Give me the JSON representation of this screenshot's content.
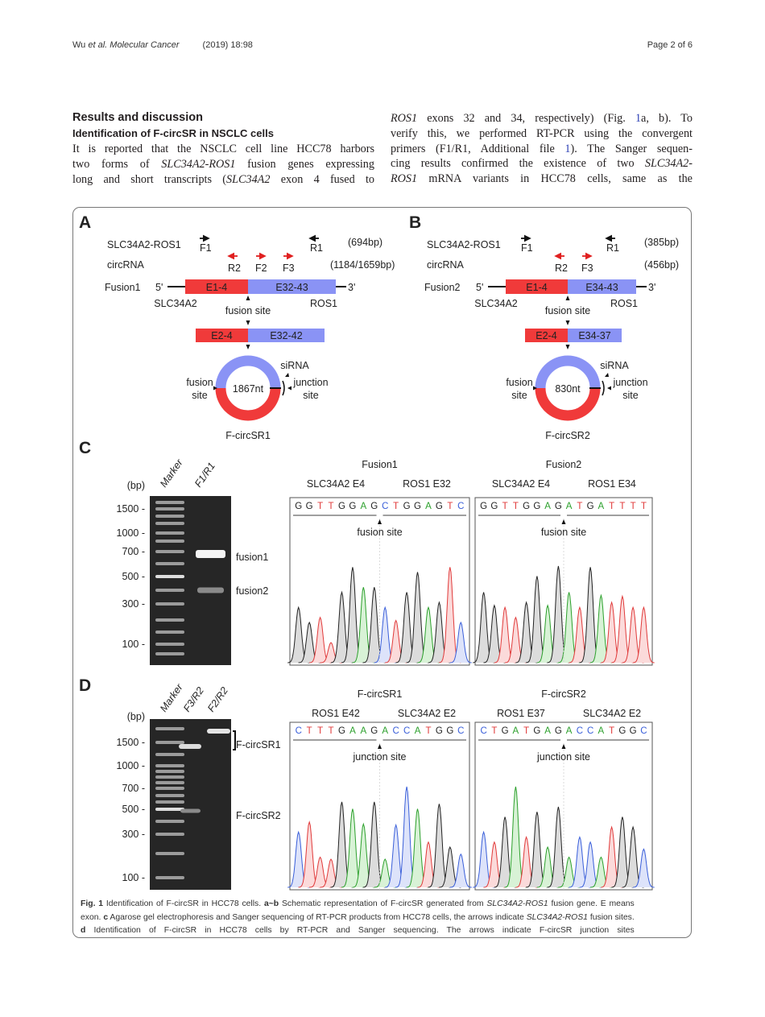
{
  "header": {
    "journal_prefix": "Wu ",
    "journal_etal": "et al.",
    "journal_name": " Molecular Cancer",
    "citation": "(2019) 18:98",
    "page": "Page 2 of 6"
  },
  "section_title": "Results and discussion",
  "subsection_title": "Identification of F-circSR in NSCLC cells",
  "left_column": [
    [
      {
        "t": "It is reported that the NSCLC cell line HCC78 harbors"
      }
    ],
    [
      {
        "t": "two forms of "
      },
      {
        "t": "SLC34A2-ROS1",
        "s": "it"
      },
      {
        "t": " fusion genes expressing"
      }
    ],
    [
      {
        "t": "long and short transcripts ("
      },
      {
        "t": "SLC34A2",
        "s": "it"
      },
      {
        "t": " exon 4 fused to"
      }
    ]
  ],
  "right_column": [
    [
      {
        "t": "ROS1",
        "s": "it"
      },
      {
        "t": " exons 32 and 34, respectively) (Fig. "
      },
      {
        "t": "1",
        "s": "lk"
      },
      {
        "t": "a, b). To"
      }
    ],
    [
      {
        "t": "verify this, we performed RT-PCR using the convergent"
      }
    ],
    [
      {
        "t": "primers (F1/R1, Additional file "
      },
      {
        "t": "1",
        "s": "lk"
      },
      {
        "t": "). The Sanger sequen-"
      }
    ],
    [
      {
        "t": "cing results confirmed the existence of two "
      },
      {
        "t": "SLC34A2-",
        "s": "it"
      }
    ],
    [
      {
        "t": "ROS1",
        "s": "it"
      },
      {
        "t": " mRNA variants in HCC78 cells, same as the"
      }
    ]
  ],
  "figure": {
    "colors": {
      "slc34a2_exon": "#f03a3a",
      "ros1_exon": "#8a93f5",
      "A": "#2ca02c",
      "C": "#3a5fd9",
      "G": "#222222",
      "T": "#e03a3a"
    },
    "panel_a": {
      "letter": "A",
      "gene_label": "SLC34A2-ROS1",
      "f1": "F1",
      "r1": "R1",
      "size1": "(694bp)",
      "circ_label": "circRNA",
      "r2": "R2",
      "f2": "F2",
      "f3": "F3",
      "size2": "(1184/1659bp)",
      "fusion_label": "Fusion1",
      "five": "5'",
      "three": "3'",
      "exon_left": "E1-4",
      "exon_right": "E32-43",
      "gene_left": "SLC34A2",
      "gene_right": "ROS1",
      "fusion_site": "fusion site",
      "circ_exon_left": "E2-4",
      "circ_exon_right": "E32-42",
      "length": "1867nt",
      "sirna": "siRNA",
      "fusion_word": "fusion",
      "site_word": "site",
      "junction_word": "junction",
      "name": "F-circSR1"
    },
    "panel_b": {
      "letter": "B",
      "gene_label": "SLC34A2-ROS1",
      "f1": "F1",
      "r1": "R1",
      "size1": "(385bp)",
      "circ_label": "circRNA",
      "r2": "R2",
      "f3": "F3",
      "size2": "(456bp)",
      "fusion_label": "Fusion2",
      "five": "5'",
      "three": "3'",
      "exon_left": "E1-4",
      "exon_right": "E34-43",
      "gene_left": "SLC34A2",
      "gene_right": "ROS1",
      "fusion_site": "fusion site",
      "circ_exon_left": "E2-4",
      "circ_exon_right": "E34-37",
      "length": "830nt",
      "sirna": "siRNA",
      "fusion_word": "fusion",
      "site_word": "site",
      "junction_word": "junction",
      "name": "F-circSR2"
    },
    "panel_c": {
      "letter": "C",
      "bp": "(bp)",
      "lanes": [
        "Marker",
        "F1/R1"
      ],
      "ticks": [
        "1500 -",
        "1000 -",
        "700 -",
        "500 -",
        "300 -",
        "100 -"
      ],
      "band_labels": [
        "fusion1",
        "fusion2"
      ],
      "chromatograms": [
        {
          "title": "Fusion1",
          "left": "SLC34A2 E4",
          "right": "ROS1 E32",
          "site": "fusion site",
          "seq": [
            "G",
            "G",
            "T",
            "T",
            "G",
            "G",
            "A",
            "G",
            "C",
            "T",
            "G",
            "G",
            "A",
            "G",
            "T",
            "C"
          ]
        },
        {
          "title": "Fusion2",
          "left": "SLC34A2 E4",
          "right": "ROS1 E34",
          "site": "fusion site",
          "seq": [
            "G",
            "G",
            "T",
            "T",
            "G",
            "G",
            "A",
            "G",
            "A",
            "T",
            "G",
            "A",
            "T",
            "T",
            "T",
            "T"
          ]
        }
      ]
    },
    "panel_d": {
      "letter": "D",
      "bp": "(bp)",
      "lanes": [
        "Marker",
        "F3/R2",
        "F2/R2"
      ],
      "ticks": [
        "1500 -",
        "1000 -",
        "700 -",
        "500 -",
        "300 -",
        "100 -"
      ],
      "band_labels": [
        "F-circSR1",
        "F-circSR2"
      ],
      "chromatograms": [
        {
          "title": "F-circSR1",
          "left": "ROS1 E42",
          "right": "SLC34A2 E2",
          "site": "junction site",
          "seq": [
            "C",
            "T",
            "T",
            "T",
            "G",
            "A",
            "A",
            "G",
            "A",
            "C",
            "C",
            "A",
            "T",
            "G",
            "G",
            "C"
          ]
        },
        {
          "title": "F-circSR2",
          "left": "ROS1 E37",
          "right": "SLC34A2 E2",
          "site": "junction site",
          "seq": [
            "C",
            "T",
            "G",
            "A",
            "T",
            "G",
            "A",
            "G",
            "A",
            "C",
            "C",
            "A",
            "T",
            "G",
            "G",
            "C"
          ]
        }
      ]
    }
  },
  "caption": [
    [
      {
        "t": "Fig. 1",
        "s": "bd"
      },
      {
        "t": " Identification of F-circSR in HCC78 cells. "
      },
      {
        "t": "a~b",
        "s": "bd"
      },
      {
        "t": " Schematic representation of F-circSR generated from "
      },
      {
        "t": "SLC34A2-ROS1",
        "s": "it"
      },
      {
        "t": " fusion gene. E means"
      }
    ],
    [
      {
        "t": "exon. "
      },
      {
        "t": "c",
        "s": "bd"
      },
      {
        "t": " Agarose gel electrophoresis and Sanger sequencing of RT-PCR products from HCC78 cells, the arrows indicate "
      },
      {
        "t": "SLC34A2-ROS1",
        "s": "it"
      },
      {
        "t": " fusion sites."
      }
    ],
    [
      {
        "t": "d",
        "s": "bd"
      },
      {
        "t": " Identification of F-circSR in HCC78 cells by RT-PCR and Sanger sequencing. The arrows indicate F-circSR junction sites"
      }
    ]
  ]
}
